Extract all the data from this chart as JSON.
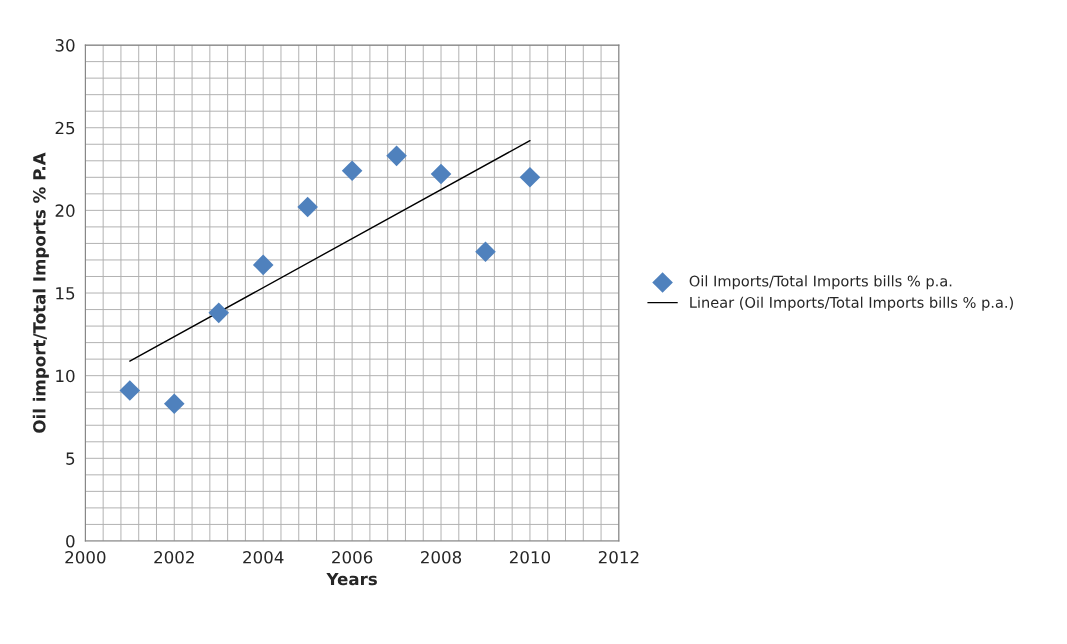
{
  "chart_data": {
    "type": "scatter",
    "xlabel": "Years",
    "ylabel": "Oil import/Total Imports % P.A",
    "xlim": [
      2000,
      2012
    ],
    "xticks": [
      2000,
      2002,
      2004,
      2006,
      2008,
      2010,
      2012
    ],
    "ylim": [
      0,
      30
    ],
    "yticks": [
      0,
      5,
      10,
      15,
      20,
      25,
      30
    ],
    "grid": true,
    "legend": "right",
    "marker": "diamond",
    "series": [
      {
        "name": "Oil Imports/Total Imports bills % p.a.",
        "color": "#4f81bd",
        "x": [
          2001,
          2002,
          2003,
          2004,
          2005,
          2006,
          2007,
          2008,
          2009,
          2010
        ],
        "values": [
          9.1,
          8.3,
          13.8,
          16.7,
          20.2,
          22.4,
          23.3,
          22.2,
          17.5,
          22.0
        ]
      },
      {
        "name": "Linear (Oil Imports/Total Imports bills % p.a.)",
        "type": "line",
        "color": "#000000",
        "line_style": "solid",
        "marker": "none",
        "x": [
          2001,
          2010
        ],
        "values": [
          10.88,
          24.22
        ]
      }
    ]
  }
}
